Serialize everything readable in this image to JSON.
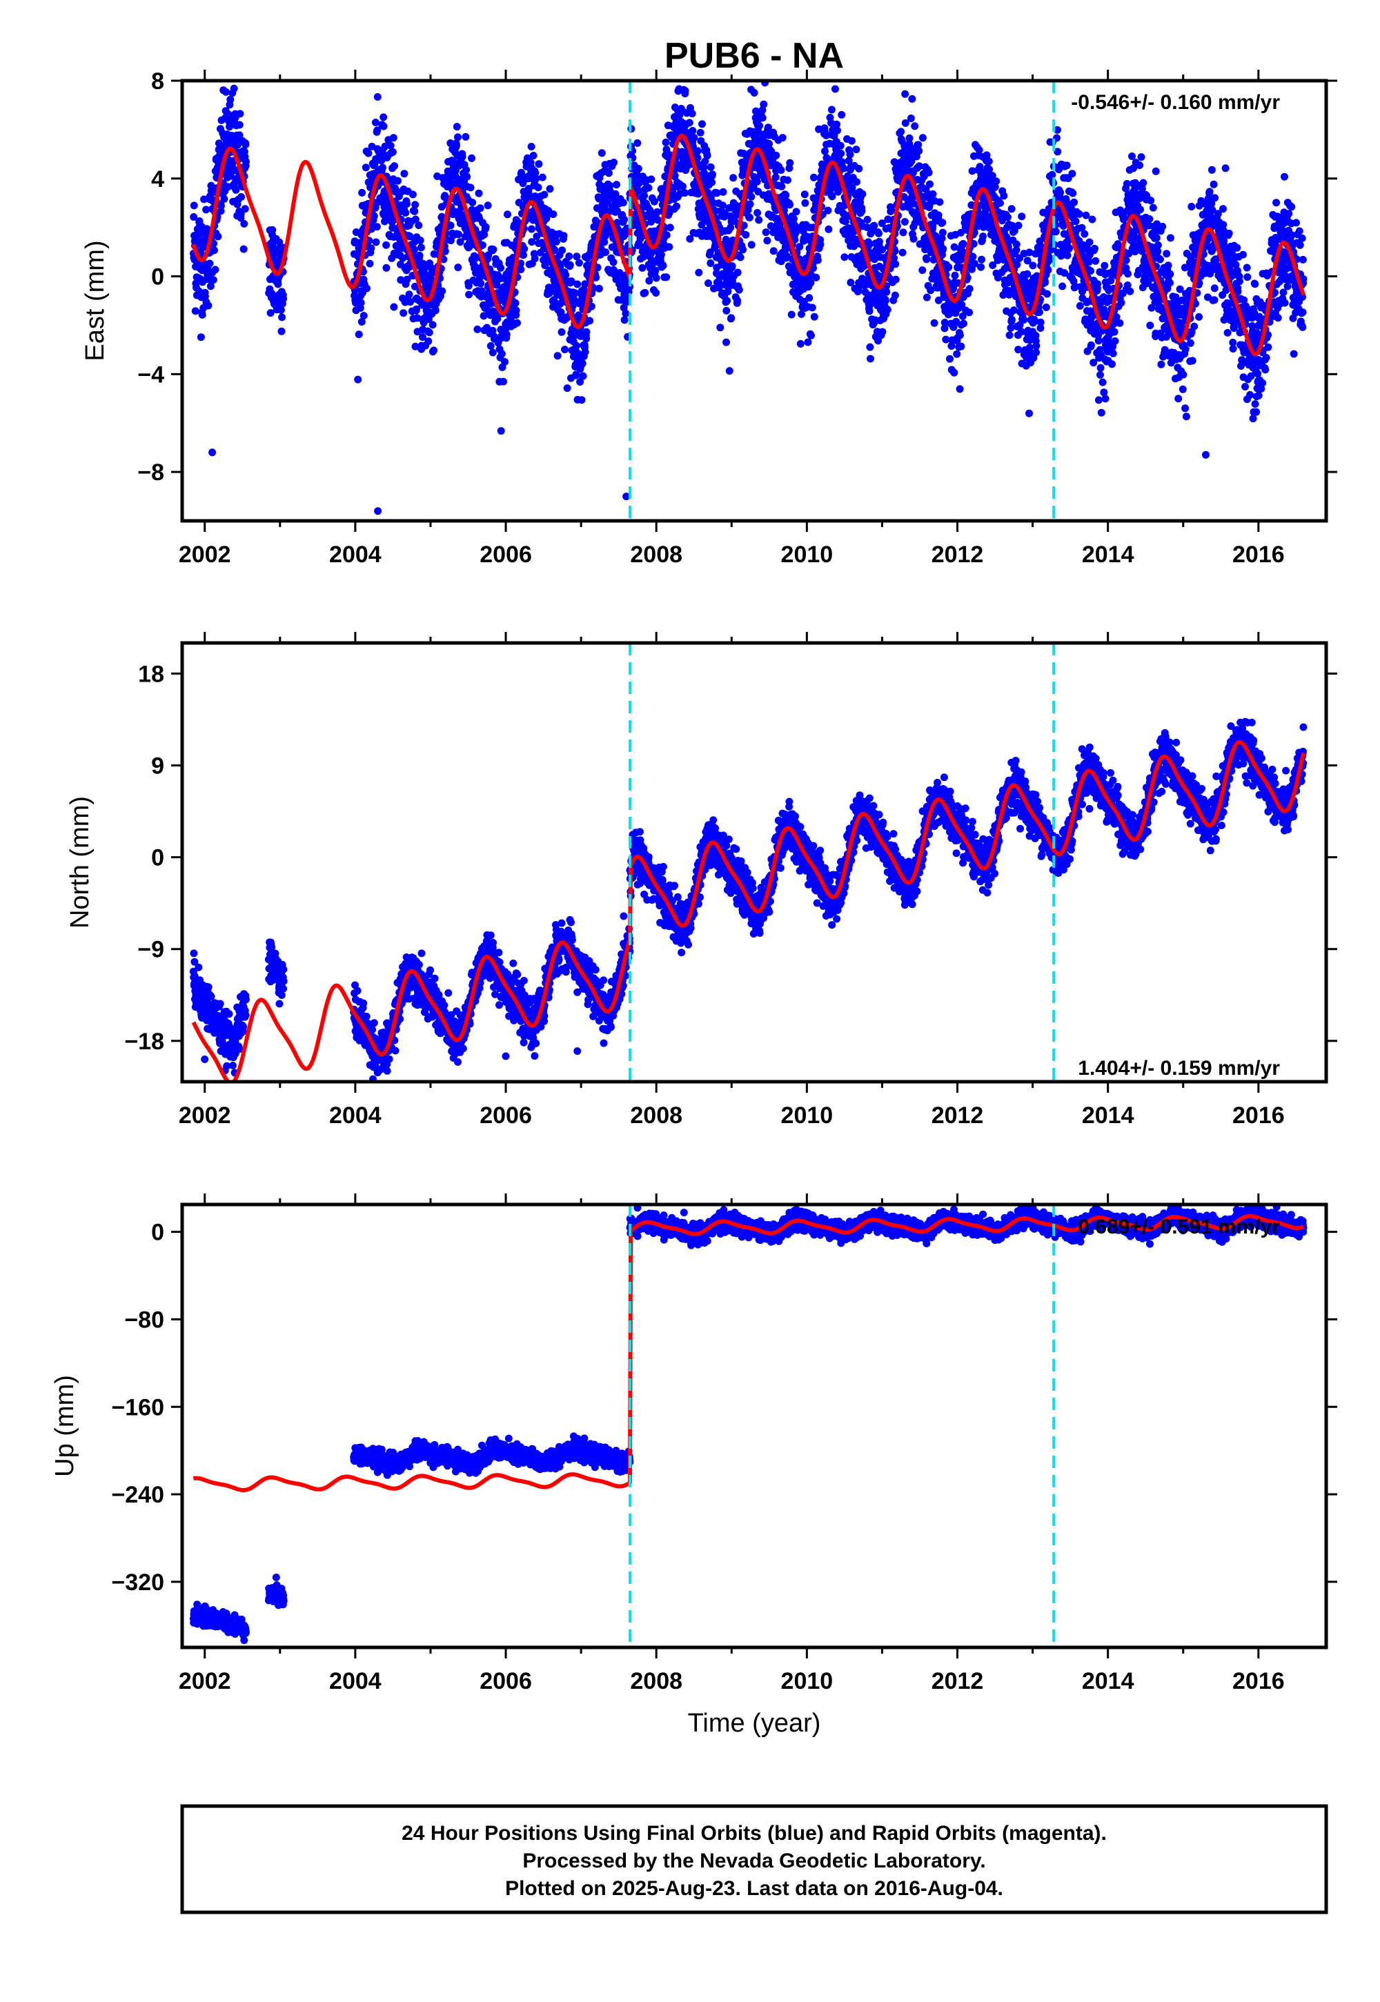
{
  "title": "PUB6 - NA",
  "colors": {
    "points": "#0000ff",
    "model": "#ff0000",
    "event_line": "#00e5ee",
    "frame": "#000000"
  },
  "footer": {
    "line1": "24 Hour Positions Using Final Orbits (blue) and Rapid Orbits (magenta).",
    "line2": "Processed by the Nevada Geodetic Laboratory.",
    "line3": "Plotted on 2025-Aug-23. Last data on 2016-Aug-04."
  },
  "chart_data": [
    {
      "type": "scatter",
      "component": "East",
      "ylabel": "East (mm)",
      "xlabel": "",
      "rate_label": "-0.546+/- 0.160 mm/yr",
      "xlim": [
        2001.7,
        2016.9
      ],
      "ylim": [
        -10,
        8
      ],
      "x_ticks": [
        2002,
        2004,
        2006,
        2008,
        2010,
        2012,
        2014,
        2016
      ],
      "y_ticks": [
        8,
        4,
        0,
        -4,
        -8
      ],
      "y_tick_labels": [
        "8",
        "4",
        "0",
        "−4",
        "−8"
      ],
      "event_lines": [
        2007.65,
        2013.28
      ],
      "data_segments": [
        {
          "start": 2001.85,
          "end": 2002.55,
          "offset": 0
        },
        {
          "start": 2002.85,
          "end": 2003.05,
          "offset": 0
        },
        {
          "start": 2003.98,
          "end": 2007.65,
          "offset": 0
        },
        {
          "start": 2007.65,
          "end": 2016.6,
          "offset": 0
        }
      ],
      "model": {
        "x_range": [
          2001.85,
          2016.6
        ],
        "t0": 2009.0,
        "rate": -0.546,
        "annual_amp": 2.2,
        "annual_phase": 0.15,
        "semiannual_amp": 0.5,
        "levels": [
          {
            "from": 2001.85,
            "to": 2007.65,
            "intercept": -0.8
          },
          {
            "from": 2007.65,
            "to": 2016.6,
            "intercept": 3.0
          }
        ]
      },
      "noise": 1.2,
      "outliers": [
        [
          2004.3,
          -9.6
        ],
        [
          2002.1,
          -7.2
        ],
        [
          2015.3,
          -7.3
        ],
        [
          2007.6,
          -9.0
        ]
      ]
    },
    {
      "type": "scatter",
      "component": "North",
      "ylabel": "North (mm)",
      "xlabel": "",
      "rate_label": "1.404+/- 0.159 mm/yr",
      "xlim": [
        2001.7,
        2016.9
      ],
      "ylim": [
        -22,
        21
      ],
      "x_ticks": [
        2002,
        2004,
        2006,
        2008,
        2010,
        2012,
        2014,
        2016
      ],
      "y_ticks": [
        18,
        9,
        0,
        -9,
        -18
      ],
      "y_tick_labels": [
        "18",
        "9",
        "0",
        "−9",
        "−18"
      ],
      "event_lines": [
        2007.65,
        2013.28
      ],
      "data_segments": [
        {
          "start": 2001.85,
          "end": 2002.55,
          "offset": 4
        },
        {
          "start": 2002.85,
          "end": 2003.05,
          "offset": 5
        },
        {
          "start": 2003.98,
          "end": 2007.65,
          "offset": 0
        },
        {
          "start": 2007.65,
          "end": 2016.6,
          "offset": 0
        }
      ],
      "model": {
        "x_range": [
          2001.85,
          2016.6
        ],
        "t0": 2009.0,
        "rate": 1.404,
        "annual_amp": 3.5,
        "annual_phase": 0.55,
        "semiannual_amp": 0.8,
        "levels": [
          {
            "from": 2001.85,
            "to": 2007.65,
            "intercept": -9.0
          },
          {
            "from": 2007.65,
            "to": 2016.6,
            "intercept": -2.0
          }
        ]
      },
      "noise": 1.1,
      "outliers": [
        [
          2006.0,
          -19.5
        ],
        [
          2006.95,
          -19.0
        ],
        [
          2002.0,
          -19.8
        ]
      ]
    },
    {
      "type": "scatter",
      "component": "Up",
      "ylabel": "Up (mm)",
      "xlabel": "Time (year)",
      "rate_label": "0.689+/- 0.591 mm/yr",
      "xlim": [
        2001.7,
        2016.9
      ],
      "ylim": [
        -380,
        25
      ],
      "x_ticks": [
        2002,
        2004,
        2006,
        2008,
        2010,
        2012,
        2014,
        2016
      ],
      "y_ticks": [
        0,
        -80,
        -160,
        -240,
        -320
      ],
      "y_tick_labels": [
        "0",
        "−80",
        "−160",
        "−240",
        "−320"
      ],
      "event_lines": [
        2007.65,
        2013.28
      ],
      "data_segments": [
        {
          "start": 2001.85,
          "end": 2002.55,
          "offset": -125
        },
        {
          "start": 2002.85,
          "end": 2003.05,
          "offset": -108
        },
        {
          "start": 2003.98,
          "end": 2007.65,
          "offset": 23
        },
        {
          "start": 2007.65,
          "end": 2016.6,
          "offset": 0
        }
      ],
      "model": {
        "x_range": [
          2001.85,
          2016.6
        ],
        "t0": 2009.0,
        "rate": 0.689,
        "annual_amp": 5.0,
        "annual_phase": 0.7,
        "semiannual_amp": 1.5,
        "levels": [
          {
            "from": 2001.85,
            "to": 2007.65,
            "intercept": -226.0
          },
          {
            "from": 2007.65,
            "to": 2016.6,
            "intercept": 4.0
          }
        ]
      },
      "noise": 4.0,
      "outliers": [
        [
          2002.05,
          -360
        ],
        [
          2002.95,
          -316
        ],
        [
          2007.75,
          22
        ]
      ]
    }
  ]
}
